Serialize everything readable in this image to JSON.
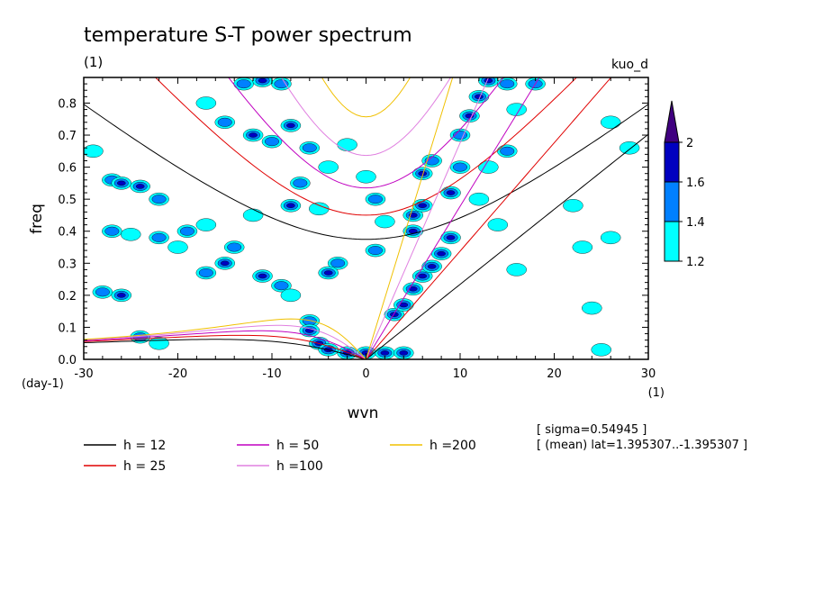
{
  "figure": {
    "title": "temperature S-T power spectrum",
    "subtitle_left": "(1)",
    "subtitle_right": "kuo_d",
    "sigma_note": "[ sigma=0.54945 ]",
    "mean_note": "[ (mean) lat=1.395307..-1.395307 ]"
  },
  "chart_data": {
    "type": "heatmap",
    "title": "temperature S-T power spectrum",
    "xlabel": "wvn",
    "xunit": "(1)",
    "ylabel": "freq",
    "yunit": "(day-1)",
    "xlim": [
      -30,
      30
    ],
    "ylim": [
      0,
      0.88
    ],
    "xticks": [
      -30,
      -20,
      -10,
      0,
      10,
      20,
      30
    ],
    "xtick_labels": [
      "-30",
      "-20",
      "-10",
      "0",
      "10",
      "20",
      "30"
    ],
    "yticks": [
      0,
      0.1,
      0.2,
      0.3,
      0.4,
      0.5,
      0.6,
      0.7,
      0.8
    ],
    "ytick_labels": [
      "0.0",
      "0.1",
      "0.2",
      "0.3",
      "0.4",
      "0.5",
      "0.6",
      "0.7",
      "0.8"
    ],
    "colorbar": {
      "levels": [
        1.2,
        1.4,
        1.6,
        2
      ],
      "labels": [
        "1.2",
        "1.4",
        "1.6",
        "2"
      ],
      "colors": [
        "#00ffff",
        "#0080ff",
        "#0000c0",
        "#400080"
      ]
    },
    "dispersion_curves": [
      {
        "name": "h = 12",
        "h": 12,
        "color": "#000000"
      },
      {
        "name": "h = 25",
        "h": 25,
        "color": "#e00000"
      },
      {
        "name": "h = 50",
        "h": 50,
        "color": "#c000c0"
      },
      {
        "name": "h =100",
        "h": 100,
        "color": "#e080e0"
      },
      {
        "name": "h =200",
        "h": 200,
        "color": "#f0c000"
      }
    ],
    "blobs": [
      {
        "x": -29,
        "y": 0.65,
        "level": 1
      },
      {
        "x": -27,
        "y": 0.56,
        "level": 2
      },
      {
        "x": -26,
        "y": 0.55,
        "level": 3
      },
      {
        "x": -24,
        "y": 0.54,
        "level": 3
      },
      {
        "x": -22,
        "y": 0.5,
        "level": 2
      },
      {
        "x": -27,
        "y": 0.4,
        "level": 2
      },
      {
        "x": -25,
        "y": 0.39,
        "level": 1
      },
      {
        "x": -22,
        "y": 0.38,
        "level": 2
      },
      {
        "x": -19,
        "y": 0.4,
        "level": 2
      },
      {
        "x": -17,
        "y": 0.42,
        "level": 1
      },
      {
        "x": -20,
        "y": 0.35,
        "level": 1
      },
      {
        "x": -17,
        "y": 0.27,
        "level": 2
      },
      {
        "x": -15,
        "y": 0.3,
        "level": 3
      },
      {
        "x": -14,
        "y": 0.35,
        "level": 2
      },
      {
        "x": -12,
        "y": 0.45,
        "level": 1
      },
      {
        "x": -11,
        "y": 0.26,
        "level": 3
      },
      {
        "x": -9,
        "y": 0.23,
        "level": 2
      },
      {
        "x": -8,
        "y": 0.2,
        "level": 1
      },
      {
        "x": -28,
        "y": 0.21,
        "level": 2
      },
      {
        "x": -26,
        "y": 0.2,
        "level": 3
      },
      {
        "x": -24,
        "y": 0.07,
        "level": 2
      },
      {
        "x": -22,
        "y": 0.05,
        "level": 1
      },
      {
        "x": -13,
        "y": 0.86,
        "level": 2
      },
      {
        "x": -11,
        "y": 0.87,
        "level": 3
      },
      {
        "x": -9,
        "y": 0.86,
        "level": 2
      },
      {
        "x": -17,
        "y": 0.8,
        "level": 1
      },
      {
        "x": -15,
        "y": 0.74,
        "level": 2
      },
      {
        "x": -12,
        "y": 0.7,
        "level": 3
      },
      {
        "x": -10,
        "y": 0.68,
        "level": 2
      },
      {
        "x": -8,
        "y": 0.73,
        "level": 3
      },
      {
        "x": -6,
        "y": 0.66,
        "level": 2
      },
      {
        "x": -7,
        "y": 0.55,
        "level": 2
      },
      {
        "x": -8,
        "y": 0.48,
        "level": 3
      },
      {
        "x": -5,
        "y": 0.47,
        "level": 1
      },
      {
        "x": -4,
        "y": 0.6,
        "level": 1
      },
      {
        "x": -2,
        "y": 0.67,
        "level": 1
      },
      {
        "x": 0,
        "y": 0.57,
        "level": 1
      },
      {
        "x": 1,
        "y": 0.5,
        "level": 2
      },
      {
        "x": 2,
        "y": 0.43,
        "level": 1
      },
      {
        "x": -3,
        "y": 0.3,
        "level": 2
      },
      {
        "x": -4,
        "y": 0.27,
        "level": 3
      },
      {
        "x": 1,
        "y": 0.34,
        "level": 2
      },
      {
        "x": -6,
        "y": 0.12,
        "level": 2
      },
      {
        "x": -6,
        "y": 0.09,
        "level": 3
      },
      {
        "x": -5,
        "y": 0.05,
        "level": 3
      },
      {
        "x": -4,
        "y": 0.03,
        "level": 4
      },
      {
        "x": -2,
        "y": 0.02,
        "level": 3
      },
      {
        "x": 0,
        "y": 0.02,
        "level": 3
      },
      {
        "x": 2,
        "y": 0.02,
        "level": 4
      },
      {
        "x": 4,
        "y": 0.02,
        "level": 3
      },
      {
        "x": 3,
        "y": 0.14,
        "level": 3
      },
      {
        "x": 4,
        "y": 0.17,
        "level": 4
      },
      {
        "x": 5,
        "y": 0.22,
        "level": 3
      },
      {
        "x": 6,
        "y": 0.26,
        "level": 4
      },
      {
        "x": 7,
        "y": 0.29,
        "level": 4
      },
      {
        "x": 8,
        "y": 0.33,
        "level": 3
      },
      {
        "x": 9,
        "y": 0.38,
        "level": 3
      },
      {
        "x": 5,
        "y": 0.4,
        "level": 3
      },
      {
        "x": 5,
        "y": 0.45,
        "level": 4
      },
      {
        "x": 6,
        "y": 0.48,
        "level": 3
      },
      {
        "x": 6,
        "y": 0.58,
        "level": 3
      },
      {
        "x": 7,
        "y": 0.62,
        "level": 2
      },
      {
        "x": 9,
        "y": 0.52,
        "level": 3
      },
      {
        "x": 10,
        "y": 0.6,
        "level": 2
      },
      {
        "x": 10,
        "y": 0.7,
        "level": 2
      },
      {
        "x": 11,
        "y": 0.76,
        "level": 3
      },
      {
        "x": 12,
        "y": 0.82,
        "level": 3
      },
      {
        "x": 13,
        "y": 0.87,
        "level": 3
      },
      {
        "x": 15,
        "y": 0.86,
        "level": 2
      },
      {
        "x": 18,
        "y": 0.86,
        "level": 2
      },
      {
        "x": 16,
        "y": 0.78,
        "level": 1
      },
      {
        "x": 15,
        "y": 0.65,
        "level": 2
      },
      {
        "x": 13,
        "y": 0.6,
        "level": 1
      },
      {
        "x": 12,
        "y": 0.5,
        "level": 1
      },
      {
        "x": 14,
        "y": 0.42,
        "level": 1
      },
      {
        "x": 16,
        "y": 0.28,
        "level": 1
      },
      {
        "x": 22,
        "y": 0.48,
        "level": 1
      },
      {
        "x": 23,
        "y": 0.35,
        "level": 1
      },
      {
        "x": 26,
        "y": 0.38,
        "level": 1
      },
      {
        "x": 24,
        "y": 0.16,
        "level": 1
      },
      {
        "x": 25,
        "y": 0.03,
        "level": 1
      },
      {
        "x": 28,
        "y": 0.66,
        "level": 1
      },
      {
        "x": 26,
        "y": 0.74,
        "level": 1
      }
    ]
  }
}
